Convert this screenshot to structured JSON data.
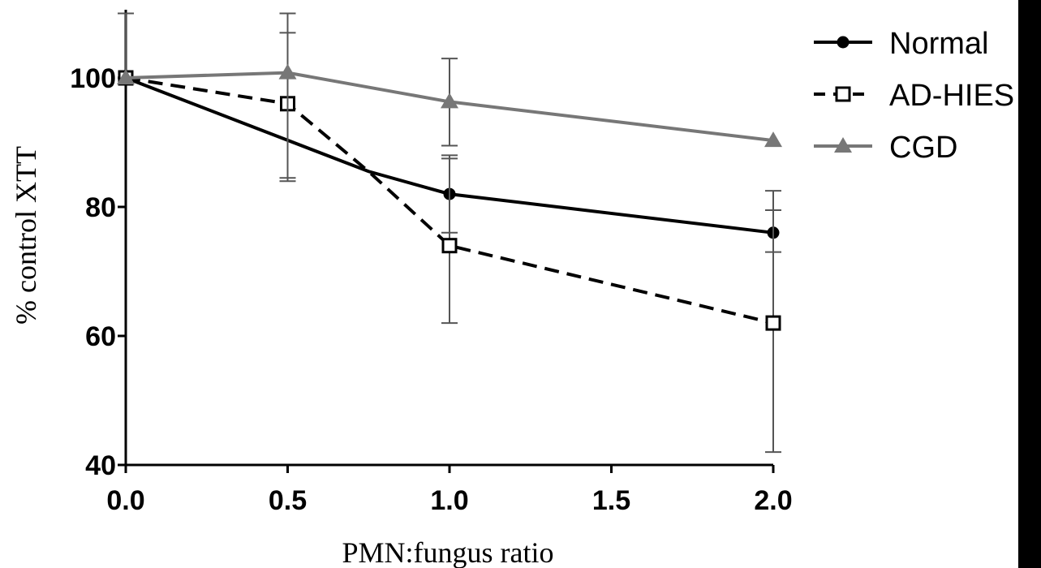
{
  "chart_data": {
    "type": "line",
    "xlabel": "PMN:fungus ratio",
    "ylabel": "% control XTT",
    "x": [
      0.0,
      0.5,
      1.0,
      2.0
    ],
    "xlim": [
      0,
      2
    ],
    "ylim": [
      40,
      110
    ],
    "xticks": [
      "0.0",
      "0.5",
      "1.0",
      "1.5",
      "2.0"
    ],
    "xtick_values": [
      0.0,
      0.5,
      1.0,
      1.5,
      2.0
    ],
    "yticks": [
      "40",
      "60",
      "80",
      "100"
    ],
    "ytick_values": [
      40,
      60,
      80,
      100
    ],
    "grid": false,
    "legend_position": "top-right",
    "series": [
      {
        "name": "Normal",
        "color": "#000000",
        "marker": "circle",
        "line": "solid",
        "x": [
          0.0,
          0.75,
          1.0,
          2.0
        ],
        "values": [
          100,
          85.5,
          82,
          76
        ],
        "marked": [
          true,
          false,
          true,
          true
        ],
        "errors": [
          null,
          null,
          [
            76,
            88
          ],
          [
            73,
            82.5
          ]
        ]
      },
      {
        "name": "AD-HIES",
        "color": "#000000",
        "marker": "open-square",
        "line": "dashed",
        "x": [
          0.0,
          0.5,
          0.75,
          1.0,
          2.0
        ],
        "values": [
          100,
          96,
          85.5,
          74,
          62
        ],
        "marked": [
          true,
          true,
          false,
          true,
          true
        ],
        "errors": [
          [
            100,
            110
          ],
          [
            84.5,
            107
          ],
          null,
          [
            62,
            87.5
          ],
          [
            42,
            79.5
          ]
        ]
      },
      {
        "name": "CGD",
        "color": "#777777",
        "marker": "triangle",
        "line": "solid",
        "x": [
          0.0,
          0.5,
          1.0,
          2.0
        ],
        "values": [
          100,
          100.8,
          96.3,
          90.3
        ],
        "marked": [
          true,
          true,
          true,
          true
        ],
        "errors": [
          null,
          [
            84,
            110
          ],
          [
            89.5,
            103
          ],
          null
        ]
      }
    ]
  }
}
